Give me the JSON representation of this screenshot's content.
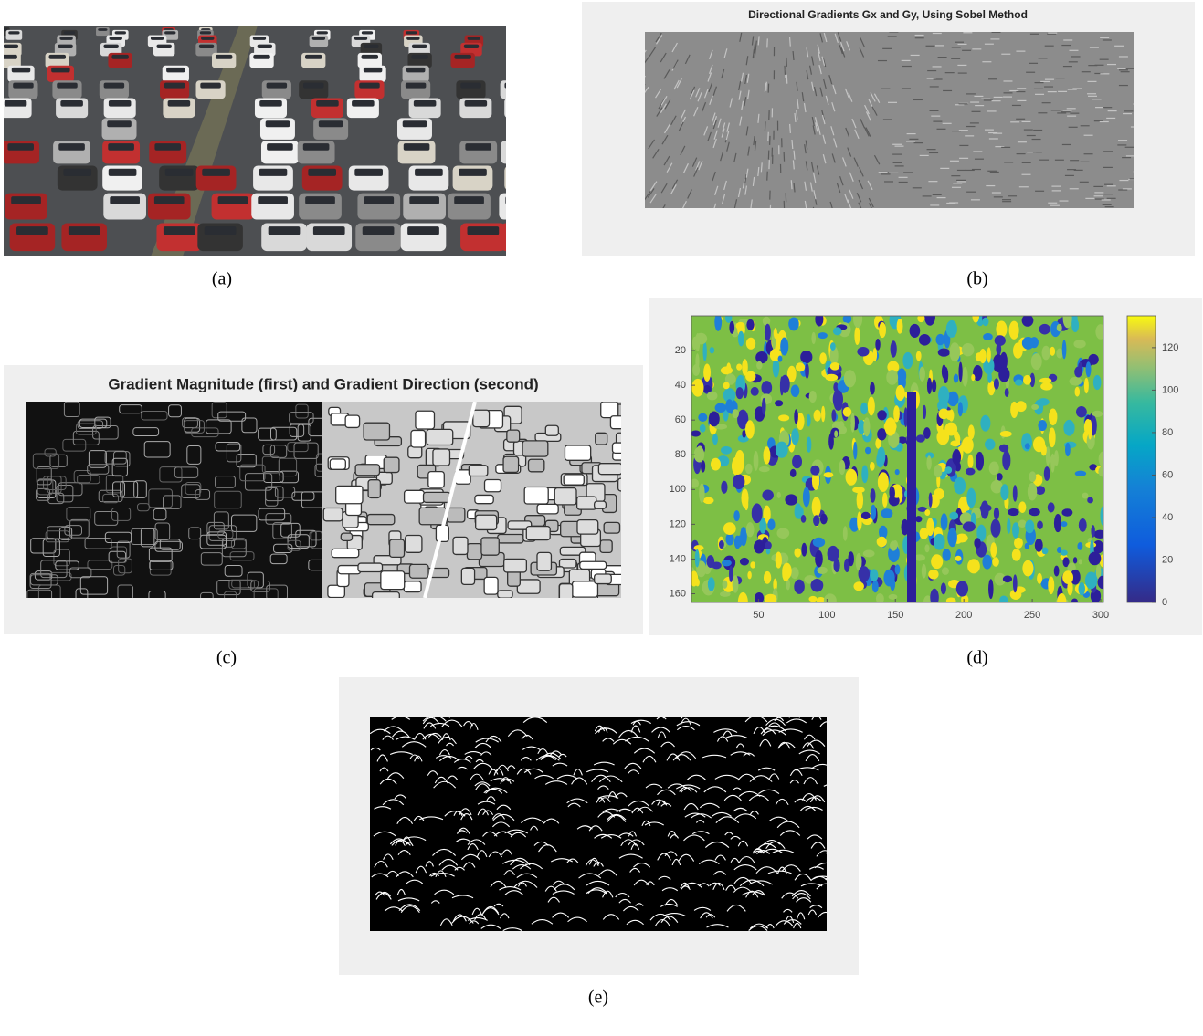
{
  "panels": [
    {
      "label": "(a)"
    },
    {
      "title": "Directional Gradients Gx and Gy, Using Sobel Method",
      "label": "(b)"
    },
    {
      "title": "Gradient Magnitude (first) and Gradient Direction (second)",
      "label": "(c)"
    },
    {
      "label": "(d)",
      "xlim": [
        1,
        302
      ],
      "ylim": [
        0,
        165
      ],
      "xticks": [
        50,
        100,
        150,
        200,
        250,
        300
      ],
      "yticks": [
        20,
        40,
        60,
        80,
        100,
        120,
        140,
        160
      ],
      "colorbar_lim": [
        0,
        135
      ],
      "colorbar_ticks": [
        0,
        20,
        40,
        60,
        80,
        100,
        120
      ]
    },
    {
      "label": "(e)"
    }
  ]
}
